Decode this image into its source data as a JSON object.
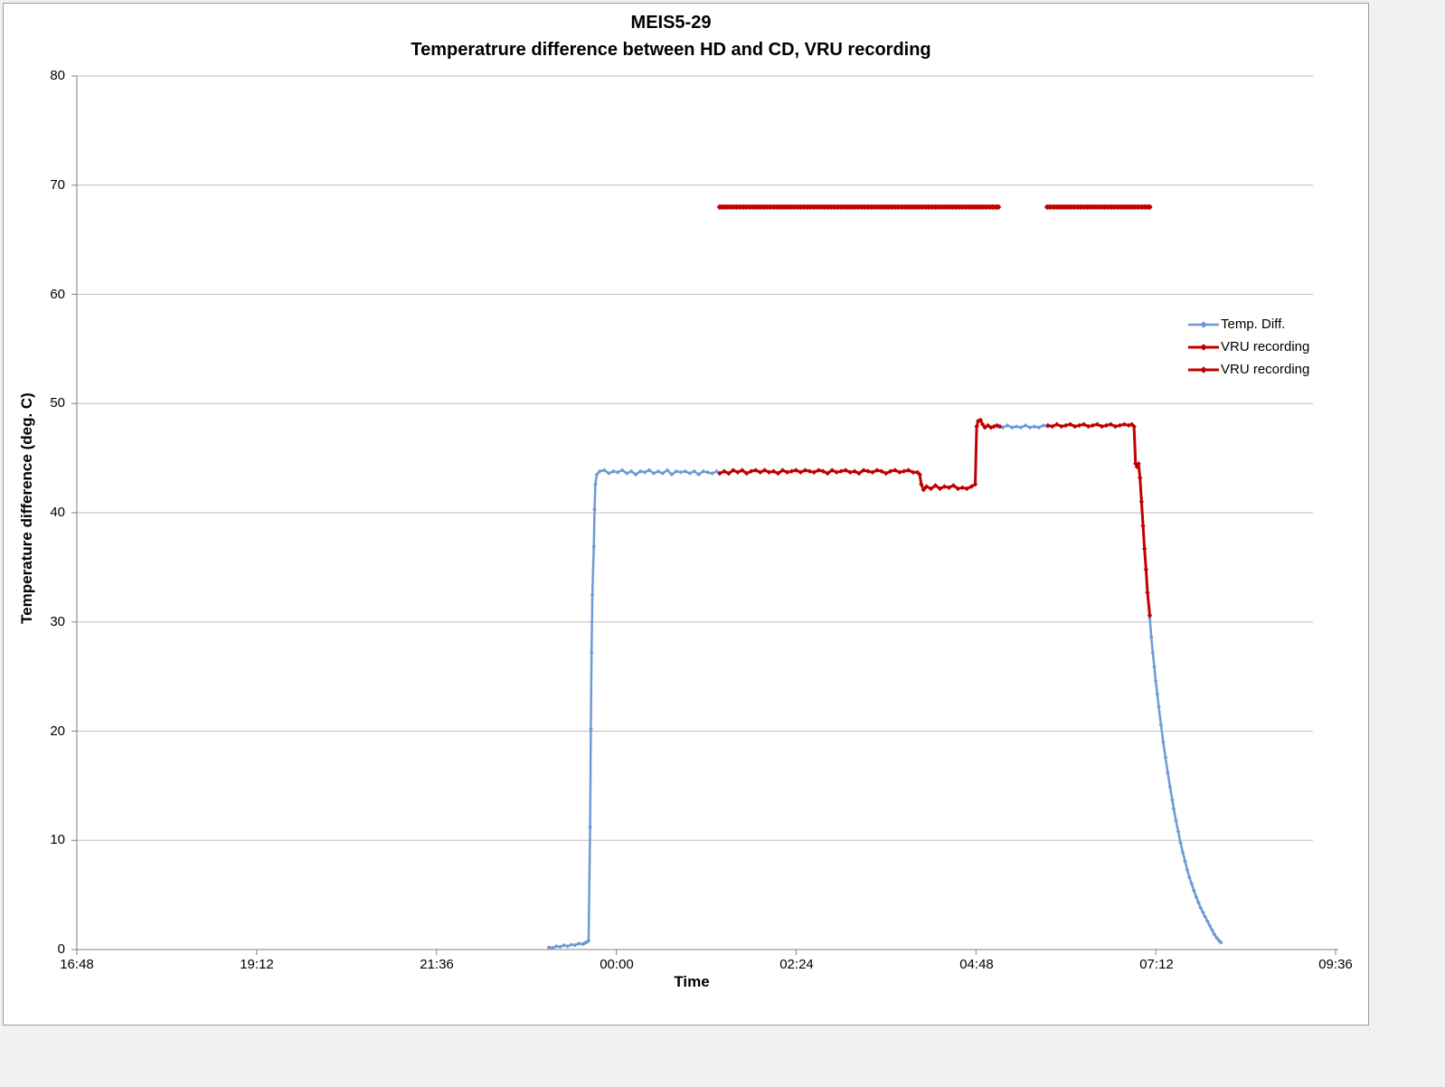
{
  "chart_title": {
    "line1": "MEIS5-29",
    "line2": "Temperatrure difference between HD and CD, VRU recording"
  },
  "axes": {
    "y": {
      "title": "Temperature difference (deg. C)",
      "ticks": [
        0,
        10,
        20,
        30,
        40,
        50,
        60,
        70,
        80
      ],
      "range": [
        0,
        80
      ]
    },
    "x": {
      "title": "Time",
      "ticks": [
        "16:48",
        "19:12",
        "21:36",
        "00:00",
        "02:24",
        "04:48",
        "07:12",
        "09:36"
      ],
      "range": [
        "16:48",
        "09:36"
      ]
    }
  },
  "legend": {
    "entries": [
      {
        "label": "Temp. Diff.",
        "color": "#6D9AD3",
        "marker": "diamond-line"
      },
      {
        "label": "VRU recording",
        "color": "#C00000",
        "marker": "diamond-line"
      },
      {
        "label": "VRU recording",
        "color": "#C00000",
        "marker": "diamond-line"
      }
    ]
  },
  "colors": {
    "temp_diff": "#6D9AD3",
    "vru": "#C00000",
    "gridline": "#BDBDBD",
    "axis": "#808080",
    "frame_border": "#9B9B9B",
    "chart_background": "#FFFFFF",
    "page_background": "#F1F1F1"
  },
  "chart_data": {
    "type": "line",
    "title": "MEIS5-29 / Temperatrure difference between HD and CD, VRU recording",
    "xlabel": "Time",
    "ylabel": "Temperature difference (deg. C)",
    "ylim": [
      0,
      80
    ],
    "x_encoding": "decimal hours on 24h clock starting 16:48; values >= 24 are after midnight",
    "xlim_hours": [
      16.8,
      33.6
    ],
    "grid": "horizontal",
    "legend_position": "right",
    "series": [
      {
        "name": "Temp. Diff.",
        "color": "#6D9AD3",
        "segments": [
          [
            [
              23.1,
              0.2
            ],
            [
              23.15,
              0.15
            ],
            [
              23.2,
              0.3
            ],
            [
              23.25,
              0.25
            ],
            [
              23.3,
              0.4
            ],
            [
              23.35,
              0.3
            ],
            [
              23.4,
              0.45
            ],
            [
              23.45,
              0.4
            ],
            [
              23.5,
              0.55
            ],
            [
              23.55,
              0.5
            ],
            [
              23.58,
              0.6
            ],
            [
              23.61,
              0.7
            ],
            [
              23.63,
              0.8
            ],
            [
              23.65,
              11.2
            ],
            [
              23.66,
              20.2
            ],
            [
              23.67,
              27.2
            ],
            [
              23.68,
              32.5
            ],
            [
              23.7,
              36.9
            ],
            [
              23.71,
              40.3
            ],
            [
              23.72,
              42.6
            ],
            [
              23.74,
              43.5
            ],
            [
              23.78,
              43.8
            ],
            [
              23.84,
              43.9
            ],
            [
              23.9,
              43.6
            ],
            [
              23.96,
              43.8
            ],
            [
              24.02,
              43.7
            ],
            [
              24.08,
              43.9
            ],
            [
              24.14,
              43.6
            ],
            [
              24.2,
              43.8
            ],
            [
              24.26,
              43.5
            ],
            [
              24.32,
              43.8
            ],
            [
              24.38,
              43.7
            ],
            [
              24.44,
              43.9
            ],
            [
              24.5,
              43.6
            ],
            [
              24.56,
              43.8
            ],
            [
              24.62,
              43.6
            ],
            [
              24.68,
              43.9
            ],
            [
              24.74,
              43.5
            ],
            [
              24.8,
              43.8
            ],
            [
              24.86,
              43.7
            ],
            [
              24.92,
              43.8
            ],
            [
              24.98,
              43.6
            ],
            [
              25.04,
              43.8
            ],
            [
              25.1,
              43.5
            ],
            [
              25.16,
              43.8
            ],
            [
              25.22,
              43.7
            ],
            [
              25.28,
              43.6
            ],
            [
              25.34,
              43.8
            ],
            [
              25.38,
              43.6
            ]
          ],
          [
            [
              29.1,
              47.9
            ],
            [
              29.16,
              47.8
            ],
            [
              29.22,
              48.0
            ],
            [
              29.28,
              47.8
            ],
            [
              29.34,
              47.9
            ],
            [
              29.4,
              47.8
            ],
            [
              29.46,
              48.0
            ],
            [
              29.52,
              47.8
            ],
            [
              29.58,
              47.9
            ],
            [
              29.64,
              47.8
            ],
            [
              29.7,
              48.0
            ],
            [
              29.76,
              47.9
            ]
          ],
          [
            [
              31.12,
              30.4
            ],
            [
              31.14,
              28.6
            ],
            [
              31.16,
              27.2
            ],
            [
              31.18,
              25.9
            ],
            [
              31.2,
              24.6
            ],
            [
              31.22,
              23.4
            ],
            [
              31.24,
              22.2
            ],
            [
              31.27,
              20.6
            ],
            [
              31.3,
              19.0
            ],
            [
              31.33,
              17.6
            ],
            [
              31.36,
              16.2
            ],
            [
              31.39,
              14.9
            ],
            [
              31.42,
              13.7
            ],
            [
              31.44,
              12.9
            ],
            [
              31.47,
              11.8
            ],
            [
              31.5,
              10.8
            ],
            [
              31.53,
              9.8
            ],
            [
              31.56,
              8.9
            ],
            [
              31.59,
              8.1
            ],
            [
              31.62,
              7.3
            ],
            [
              31.65,
              6.6
            ],
            [
              31.68,
              6.0
            ],
            [
              31.71,
              5.4
            ],
            [
              31.74,
              4.8
            ],
            [
              31.77,
              4.3
            ],
            [
              31.8,
              3.8
            ],
            [
              31.83,
              3.4
            ],
            [
              31.86,
              3.0
            ],
            [
              31.89,
              2.6
            ],
            [
              31.92,
              2.2
            ],
            [
              31.95,
              1.8
            ],
            [
              31.98,
              1.4
            ],
            [
              32.01,
              1.1
            ],
            [
              32.04,
              0.85
            ],
            [
              32.07,
              0.65
            ]
          ]
        ]
      },
      {
        "name": "VRU recording",
        "color": "#C00000",
        "indicator": {
          "y": 68,
          "from": 25.38,
          "to": 29.1,
          "marker_step": 0.045
        },
        "segments": [
          [
            [
              25.38,
              43.6
            ],
            [
              25.44,
              43.8
            ],
            [
              25.5,
              43.6
            ],
            [
              25.56,
              43.9
            ],
            [
              25.62,
              43.7
            ],
            [
              25.68,
              43.9
            ],
            [
              25.74,
              43.6
            ],
            [
              25.8,
              43.8
            ],
            [
              25.86,
              43.9
            ],
            [
              25.92,
              43.7
            ],
            [
              25.98,
              43.9
            ],
            [
              26.04,
              43.7
            ],
            [
              26.1,
              43.8
            ],
            [
              26.16,
              43.6
            ],
            [
              26.22,
              43.9
            ],
            [
              26.28,
              43.7
            ],
            [
              26.34,
              43.8
            ],
            [
              26.4,
              43.9
            ],
            [
              26.46,
              43.7
            ],
            [
              26.52,
              43.9
            ],
            [
              26.58,
              43.8
            ],
            [
              26.64,
              43.7
            ],
            [
              26.7,
              43.9
            ],
            [
              26.76,
              43.8
            ],
            [
              26.82,
              43.6
            ],
            [
              26.88,
              43.9
            ],
            [
              26.94,
              43.7
            ],
            [
              27.0,
              43.8
            ],
            [
              27.06,
              43.9
            ],
            [
              27.12,
              43.7
            ],
            [
              27.18,
              43.8
            ],
            [
              27.24,
              43.6
            ],
            [
              27.3,
              43.9
            ],
            [
              27.36,
              43.8
            ],
            [
              27.42,
              43.7
            ],
            [
              27.48,
              43.9
            ],
            [
              27.54,
              43.8
            ],
            [
              27.6,
              43.6
            ],
            [
              27.66,
              43.8
            ],
            [
              27.72,
              43.9
            ],
            [
              27.78,
              43.7
            ],
            [
              27.84,
              43.8
            ],
            [
              27.9,
              43.9
            ],
            [
              27.96,
              43.7
            ],
            [
              28.02,
              43.7
            ],
            [
              28.05,
              43.5
            ],
            [
              28.07,
              42.6
            ],
            [
              28.1,
              42.1
            ],
            [
              28.14,
              42.4
            ],
            [
              28.2,
              42.2
            ],
            [
              28.26,
              42.5
            ],
            [
              28.32,
              42.2
            ],
            [
              28.38,
              42.4
            ],
            [
              28.44,
              42.3
            ],
            [
              28.5,
              42.5
            ],
            [
              28.56,
              42.2
            ],
            [
              28.62,
              42.3
            ],
            [
              28.68,
              42.2
            ],
            [
              28.74,
              42.4
            ],
            [
              28.79,
              42.6
            ],
            [
              28.81,
              47.9
            ],
            [
              28.83,
              48.4
            ],
            [
              28.86,
              48.5
            ],
            [
              28.89,
              48.1
            ],
            [
              28.92,
              47.8
            ],
            [
              28.96,
              48.0
            ],
            [
              29.0,
              47.8
            ],
            [
              29.04,
              47.9
            ],
            [
              29.08,
              48.0
            ],
            [
              29.12,
              47.9
            ]
          ]
        ]
      },
      {
        "name": "VRU recording",
        "color": "#C00000",
        "indicator": {
          "y": 68,
          "from": 29.75,
          "to": 31.12,
          "marker_step": 0.045
        },
        "segments": [
          [
            [
              29.76,
              48.0
            ],
            [
              29.82,
              47.9
            ],
            [
              29.88,
              48.1
            ],
            [
              29.94,
              47.9
            ],
            [
              30.0,
              48.0
            ],
            [
              30.06,
              48.1
            ],
            [
              30.12,
              47.9
            ],
            [
              30.18,
              48.0
            ],
            [
              30.24,
              48.1
            ],
            [
              30.3,
              47.9
            ],
            [
              30.36,
              48.0
            ],
            [
              30.42,
              48.1
            ],
            [
              30.48,
              47.9
            ],
            [
              30.54,
              48.0
            ],
            [
              30.6,
              48.1
            ],
            [
              30.66,
              47.9
            ],
            [
              30.72,
              48.0
            ],
            [
              30.78,
              48.1
            ],
            [
              30.84,
              48.0
            ],
            [
              30.88,
              48.1
            ],
            [
              30.91,
              47.9
            ],
            [
              30.93,
              44.5
            ],
            [
              30.95,
              44.2
            ],
            [
              30.97,
              44.5
            ],
            [
              30.99,
              43.2
            ],
            [
              31.01,
              41.0
            ],
            [
              31.03,
              38.8
            ],
            [
              31.05,
              36.7
            ],
            [
              31.07,
              34.8
            ],
            [
              31.09,
              32.7
            ],
            [
              31.12,
              30.6
            ]
          ]
        ]
      }
    ]
  }
}
